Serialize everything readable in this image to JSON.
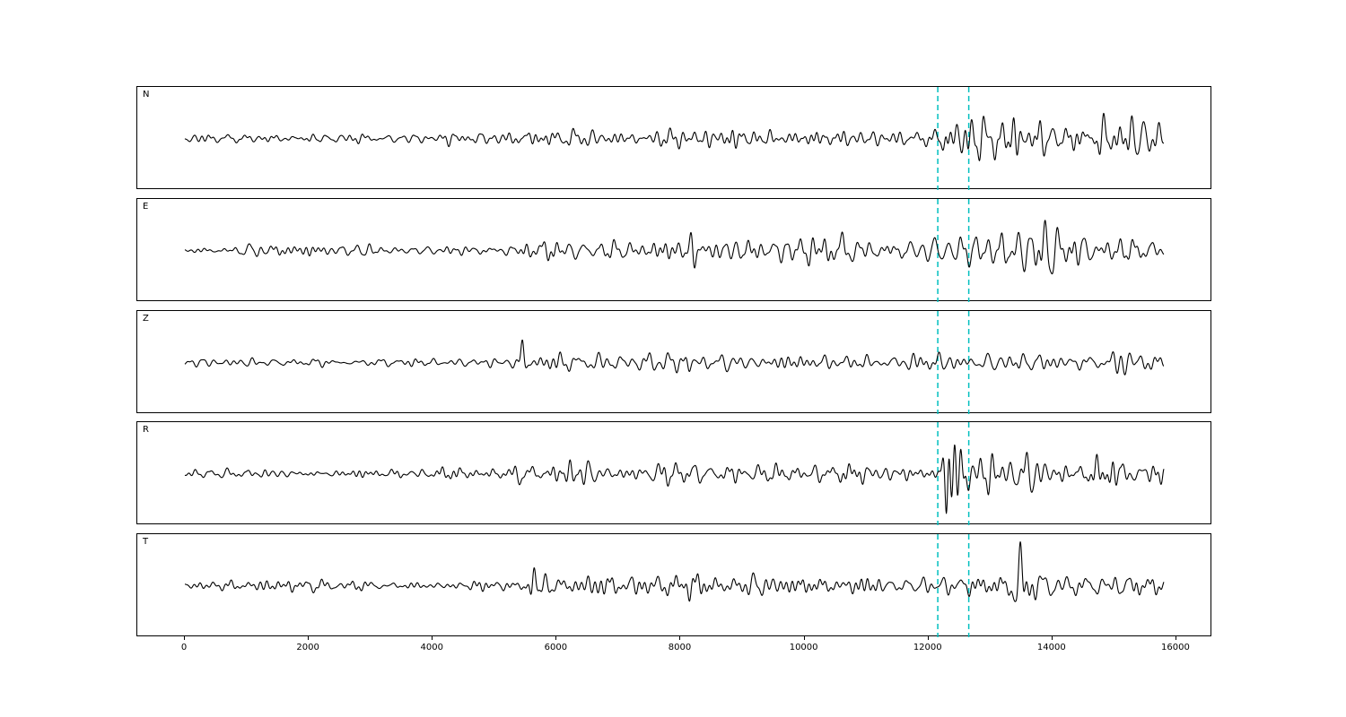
{
  "chart_data": {
    "type": "line",
    "title": "",
    "xlabel": "",
    "ylabel": "",
    "description": "Five-component seismogram traces stacked vertically (N, E, Z, R, T) with two vertical dashed cyan pick lines spanning all panels",
    "x_ticks": [
      0,
      2000,
      4000,
      6000,
      8000,
      10000,
      12000,
      14000,
      16000
    ],
    "xlim": [
      -768,
      16580
    ],
    "x_data_range": [
      0,
      15800
    ],
    "grid": false,
    "legend": "none",
    "trace_color": "#000000",
    "vlines": {
      "positions": [
        12150,
        12650
      ],
      "color": "#00bfbf",
      "style": "dashed"
    },
    "panels": [
      {
        "label": "N",
        "seed": 101,
        "envelope": [
          [
            0,
            4
          ],
          [
            3300,
            4
          ],
          [
            3450,
            7
          ],
          [
            3600,
            5
          ],
          [
            4800,
            6
          ],
          [
            5300,
            7
          ],
          [
            5420,
            18
          ],
          [
            5700,
            10
          ],
          [
            7900,
            9
          ],
          [
            8100,
            16
          ],
          [
            8300,
            11
          ],
          [
            11800,
            11
          ],
          [
            12150,
            12
          ],
          [
            12280,
            40
          ],
          [
            12450,
            38
          ],
          [
            12700,
            20
          ],
          [
            13000,
            26
          ],
          [
            13500,
            24
          ],
          [
            14500,
            20
          ],
          [
            15200,
            24
          ],
          [
            15800,
            20
          ]
        ],
        "spikes": [
          [
            12300,
            18,
            60
          ],
          [
            13080,
            16,
            70
          ],
          [
            15250,
            10,
            80
          ]
        ]
      },
      {
        "label": "E",
        "seed": 202,
        "envelope": [
          [
            0,
            4
          ],
          [
            800,
            5
          ],
          [
            1300,
            7
          ],
          [
            2300,
            6
          ],
          [
            4500,
            5
          ],
          [
            5350,
            6
          ],
          [
            5480,
            18
          ],
          [
            6000,
            13
          ],
          [
            7000,
            12
          ],
          [
            8200,
            14
          ],
          [
            9500,
            12
          ],
          [
            10700,
            14
          ],
          [
            11800,
            11
          ],
          [
            12300,
            13
          ],
          [
            12600,
            16
          ],
          [
            12900,
            26
          ],
          [
            13300,
            30
          ],
          [
            13700,
            24
          ],
          [
            14200,
            16
          ],
          [
            15200,
            15
          ],
          [
            15800,
            16
          ]
        ],
        "spikes": [
          [
            13250,
            14,
            90
          ],
          [
            10650,
            7,
            60
          ],
          [
            8200,
            6,
            50
          ]
        ]
      },
      {
        "label": "Z",
        "seed": 303,
        "envelope": [
          [
            0,
            4
          ],
          [
            350,
            6
          ],
          [
            600,
            4
          ],
          [
            4800,
            5
          ],
          [
            5250,
            6
          ],
          [
            5430,
            26
          ],
          [
            5600,
            9
          ],
          [
            6500,
            11
          ],
          [
            7000,
            9
          ],
          [
            8050,
            14
          ],
          [
            8300,
            9
          ],
          [
            12000,
            10
          ],
          [
            14800,
            8
          ],
          [
            15250,
            16
          ],
          [
            15500,
            14
          ],
          [
            15800,
            10
          ]
        ],
        "spikes": [
          [
            5450,
            26,
            45
          ],
          [
            8120,
            8,
            50
          ],
          [
            15330,
            10,
            60
          ]
        ]
      },
      {
        "label": "R",
        "seed": 404,
        "envelope": [
          [
            0,
            4
          ],
          [
            3300,
            4
          ],
          [
            3450,
            7
          ],
          [
            3600,
            5
          ],
          [
            5250,
            6
          ],
          [
            5420,
            16
          ],
          [
            5700,
            9
          ],
          [
            8000,
            10
          ],
          [
            8150,
            14
          ],
          [
            8400,
            10
          ],
          [
            11900,
            10
          ],
          [
            12150,
            11
          ],
          [
            12290,
            40
          ],
          [
            12460,
            36
          ],
          [
            12750,
            18
          ],
          [
            13100,
            24
          ],
          [
            13600,
            22
          ],
          [
            14500,
            18
          ],
          [
            15300,
            20
          ],
          [
            15800,
            18
          ]
        ],
        "spikes": [
          [
            12310,
            18,
            60
          ],
          [
            13150,
            14,
            70
          ]
        ]
      },
      {
        "label": "T",
        "seed": 505,
        "envelope": [
          [
            0,
            4
          ],
          [
            1400,
            6
          ],
          [
            2300,
            6
          ],
          [
            3000,
            5
          ],
          [
            5400,
            5
          ],
          [
            5580,
            20
          ],
          [
            5900,
            13
          ],
          [
            7000,
            12
          ],
          [
            8100,
            13
          ],
          [
            8400,
            11
          ],
          [
            11500,
            10
          ],
          [
            12200,
            9
          ],
          [
            12800,
            10
          ],
          [
            13250,
            12
          ],
          [
            13420,
            34
          ],
          [
            13600,
            20
          ],
          [
            14200,
            12
          ],
          [
            15100,
            13
          ],
          [
            15600,
            12
          ],
          [
            15800,
            12
          ]
        ],
        "spikes": [
          [
            13450,
            16,
            70
          ],
          [
            5620,
            8,
            50
          ],
          [
            15350,
            6,
            60
          ]
        ]
      }
    ]
  }
}
